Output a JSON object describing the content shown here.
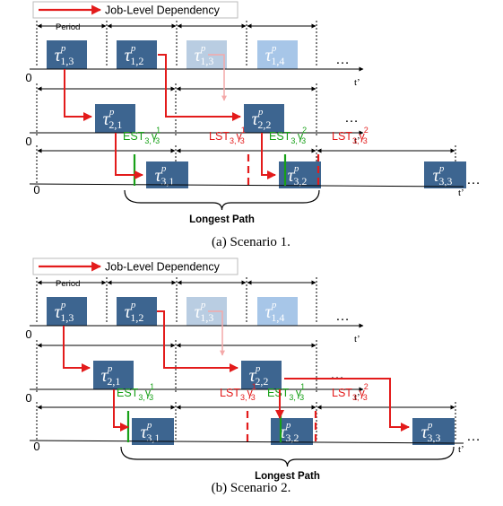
{
  "legend": {
    "label": "Job-Level Dependency"
  },
  "period_label": "Period",
  "axis": {
    "origin": "0",
    "time": "t’"
  },
  "ellipsis": "…",
  "longest_path": "Longest Path",
  "colors": {
    "job": "#3d6590",
    "job_faded": "#b9cde2",
    "job_light": "#a7c6e8",
    "arrow": "#e31b1b",
    "est": "#18a018",
    "lst": "#e31b1b"
  },
  "scenarios": [
    {
      "caption": "(a) Scenario 1.",
      "rows": [
        {
          "jobs": [
            {
              "base": "τ",
              "sup": "p",
              "sub": "1,3"
            },
            {
              "base": "τ",
              "sup": "p",
              "sub": "1,2"
            },
            {
              "base": "τ",
              "sup": "p",
              "sub": "1,3"
            },
            {
              "base": "τ",
              "sup": "p",
              "sub": "1,4"
            }
          ]
        },
        {
          "jobs": [
            {
              "base": "τ",
              "sup": "p",
              "sub": "2,1"
            },
            {
              "base": "τ",
              "sup": "p",
              "sub": "2,2"
            }
          ]
        },
        {
          "jobs": [
            {
              "base": "τ",
              "sup": "p",
              "sub": "3,1"
            },
            {
              "base": "τ",
              "sup": "p",
              "sub": "3,2"
            },
            {
              "base": "τ",
              "sup": "p",
              "sub": "3,3"
            }
          ]
        }
      ],
      "markers": [
        {
          "prefix": "EST",
          "sub": "3,",
          "gamma": "γ",
          "gsub": "3",
          "gsup": "1",
          "kind": "est"
        },
        {
          "prefix": "LST",
          "sub": "3,",
          "gamma": "γ",
          "gsub": "3",
          "gsup": "1",
          "kind": "lst"
        },
        {
          "prefix": "EST",
          "sub": "3,",
          "gamma": "γ",
          "gsub": "3",
          "gsup": "2",
          "kind": "est"
        },
        {
          "prefix": "LST",
          "sub": "3,",
          "gamma": "γ",
          "gsub": "3",
          "gsup": "2",
          "kind": "lst"
        }
      ]
    },
    {
      "caption": "(b) Scenario 2.",
      "rows": [
        {
          "jobs": [
            {
              "base": "τ",
              "sup": "p",
              "sub": "1,3"
            },
            {
              "base": "τ",
              "sup": "p",
              "sub": "1,2"
            },
            {
              "base": "τ",
              "sup": "p",
              "sub": "1,3"
            },
            {
              "base": "τ",
              "sup": "p",
              "sub": "1,4"
            }
          ]
        },
        {
          "jobs": [
            {
              "base": "τ",
              "sup": "p",
              "sub": "2,1"
            },
            {
              "base": "τ",
              "sup": "p",
              "sub": "2,2"
            }
          ]
        },
        {
          "jobs": [
            {
              "base": "τ",
              "sup": "p",
              "sub": "3,1"
            },
            {
              "base": "τ",
              "sup": "p",
              "sub": "3,2"
            },
            {
              "base": "τ",
              "sup": "p",
              "sub": "3,3"
            }
          ]
        }
      ],
      "markers": [
        {
          "prefix": "EST",
          "sub": "3,",
          "gamma": "γ",
          "gsub": "3",
          "gsup": "1",
          "kind": "est"
        },
        {
          "prefix": "LST",
          "sub": "3,",
          "gamma": "γ",
          "gsub": "3",
          "gsup": "1",
          "kind": "lst"
        },
        {
          "prefix": "EST",
          "sub": "3,",
          "gamma": "γ",
          "gsub": "3",
          "gsup": "1",
          "kind": "est"
        },
        {
          "prefix": "LST",
          "sub": "3,",
          "gamma": "γ",
          "gsub": "3",
          "gsup": "2",
          "kind": "lst"
        }
      ]
    }
  ]
}
